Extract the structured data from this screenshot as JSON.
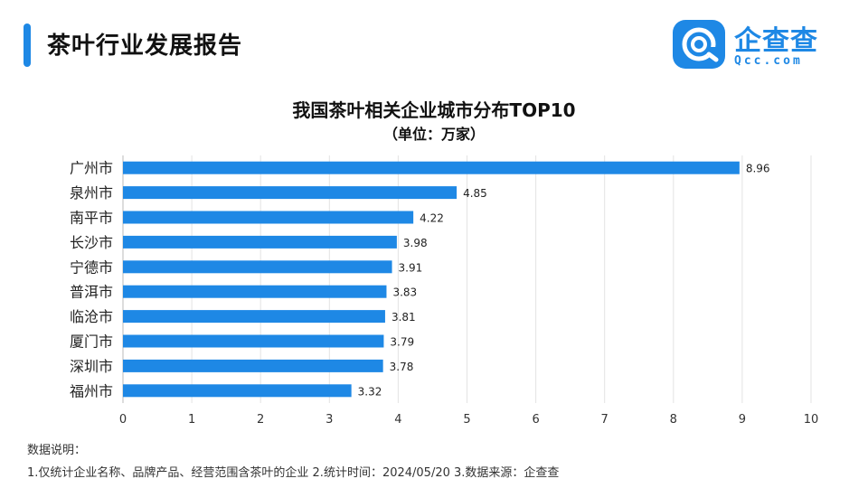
{
  "header": {
    "title": "茶叶行业发展报告"
  },
  "brand": {
    "name": "企查查",
    "domain": "Qcc.com",
    "icon": "qcc-logo-icon",
    "color": "#1e88e5"
  },
  "chart_data": {
    "type": "bar",
    "orientation": "horizontal",
    "title": "我国茶叶相关企业城市分布TOP10",
    "subtitle": "（单位：万家）",
    "categories": [
      "广州市",
      "泉州市",
      "南平市",
      "长沙市",
      "宁德市",
      "普洱市",
      "临沧市",
      "厦门市",
      "深圳市",
      "福州市"
    ],
    "values": [
      8.96,
      4.85,
      4.22,
      3.98,
      3.91,
      3.83,
      3.81,
      3.79,
      3.78,
      3.32
    ],
    "value_labels": [
      "8.96",
      "4.85",
      "4.22",
      "3.98",
      "3.91",
      "3.83",
      "3.81",
      "3.79",
      "3.78",
      "3.32"
    ],
    "x_ticks": [
      "0",
      "1",
      "2",
      "3",
      "4",
      "5",
      "6",
      "7",
      "8",
      "9",
      "10"
    ],
    "xlim": [
      0,
      10
    ],
    "grid": "vertical",
    "bar_color": "#1e88e5"
  },
  "notes": {
    "heading": "数据说明：",
    "text": "1.仅统计企业名称、品牌产品、经营范围含茶叶的企业   2.统计时间：2024/05/20   3.数据来源：企查查"
  }
}
